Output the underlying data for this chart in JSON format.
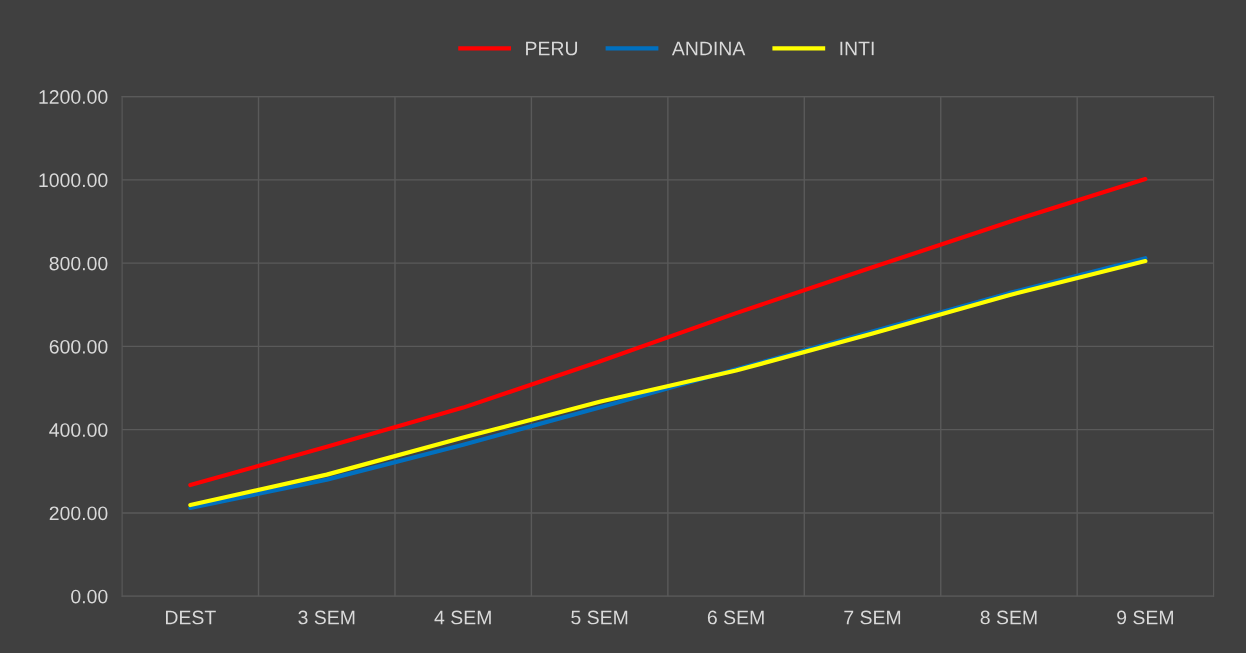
{
  "chart_data": {
    "type": "line",
    "categories": [
      "DEST",
      "3 SEM",
      "4 SEM",
      "5 SEM",
      "6 SEM",
      "7 SEM",
      "8 SEM",
      "9 SEM"
    ],
    "series": [
      {
        "name": "PERU",
        "color": "#ff0000",
        "values": [
          267,
          359,
          453,
          564,
          680,
          790,
          899,
          1002
        ]
      },
      {
        "name": "ANDINA",
        "color": "#0070c0",
        "values": [
          212,
          280,
          364,
          453,
          545,
          636,
          728,
          812
        ]
      },
      {
        "name": "INTI",
        "color": "#ffff00",
        "values": [
          219,
          292,
          381,
          467,
          542,
          631,
          723,
          805
        ]
      }
    ],
    "ylim": [
      0,
      1200
    ],
    "yticks": [
      {
        "value": 0,
        "label": "0.00"
      },
      {
        "value": 200,
        "label": "200.00"
      },
      {
        "value": 400,
        "label": "400.00"
      },
      {
        "value": 600,
        "label": "600.00"
      },
      {
        "value": 800,
        "label": "800.00"
      },
      {
        "value": 1000,
        "label": "1000.00"
      },
      {
        "value": 1200,
        "label": "1200.00"
      }
    ],
    "grid": true,
    "legend": "top",
    "marker": "none",
    "line_style": "solid"
  }
}
